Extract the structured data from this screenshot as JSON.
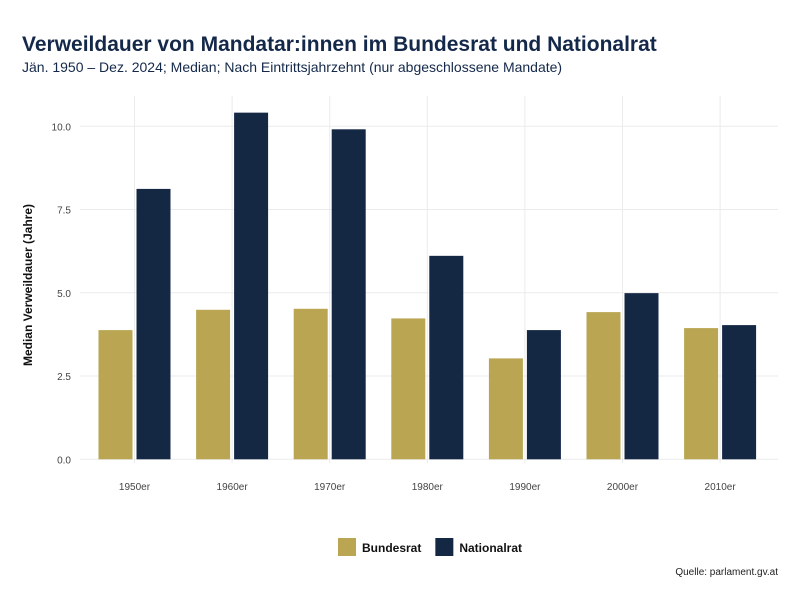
{
  "title": "Verweildauer von Mandatar:innen im Bundesrat und Nationalrat",
  "subtitle": "Jän. 1950 – Dez. 2024; Median; Nach Eintrittsjahrzehnt (nur abgeschlossene Mandate)",
  "source": "Quelle: parlament.gv.at",
  "chart_data": {
    "type": "bar",
    "title": "Verweildauer von Mandatar:innen im Bundesrat und Nationalrat",
    "xlabel": "",
    "ylabel": "Median Verweildauer (Jahre)",
    "ylim": [
      0,
      10.9
    ],
    "yticks": [
      "0.0",
      "2.5",
      "5.0",
      "7.5",
      "10.0"
    ],
    "ytick_values": [
      0,
      2.5,
      5,
      7.5,
      10
    ],
    "grid": true,
    "legend_position": "bottom",
    "categories": [
      "1950er",
      "1960er",
      "1970er",
      "1980er",
      "1990er",
      "2000er",
      "2010er"
    ],
    "series": [
      {
        "name": "Bundesrat",
        "color": "#b9a552",
        "values": [
          3.88,
          4.49,
          4.52,
          4.23,
          3.03,
          4.42,
          3.94
        ]
      },
      {
        "name": "Nationalrat",
        "color": "#142844",
        "values": [
          8.12,
          10.41,
          9.91,
          6.11,
          3.88,
          4.99,
          4.03
        ]
      }
    ]
  }
}
